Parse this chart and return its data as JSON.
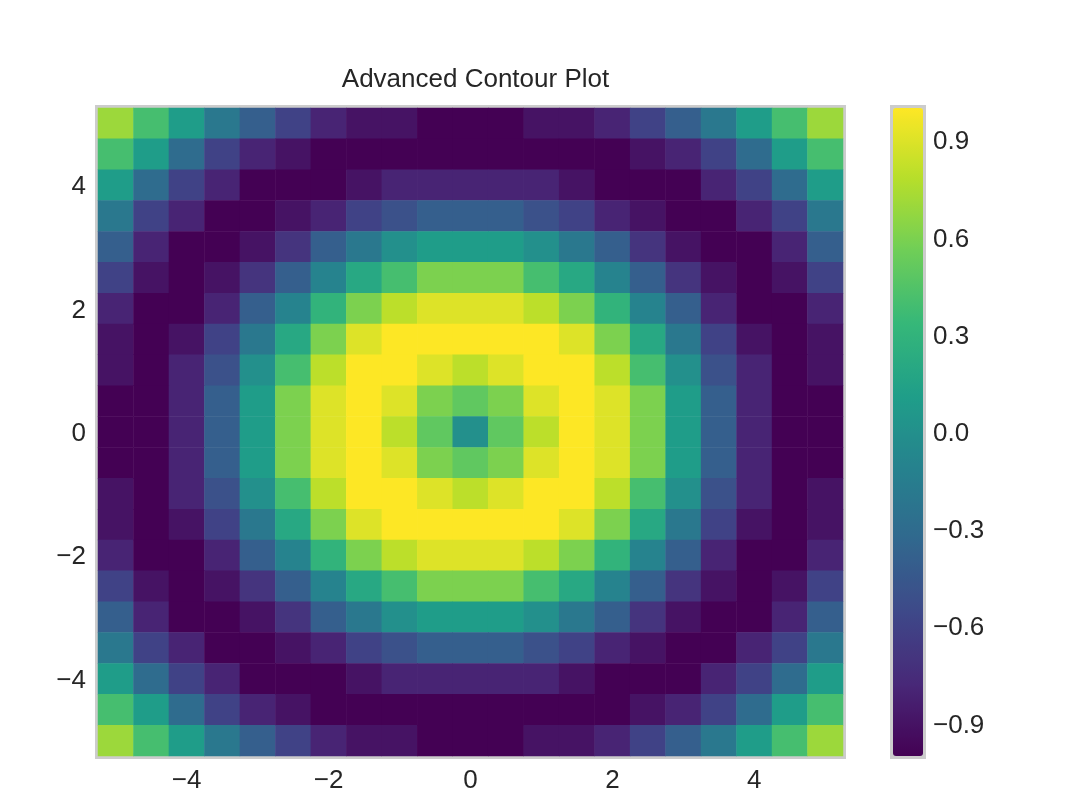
{
  "chart_data": {
    "type": "heatmap",
    "title": "Advanced Contour Plot",
    "categories": [
      null,
      null,
      "−4",
      null,
      null,
      null,
      "−2",
      null,
      null,
      null,
      "0",
      null,
      null,
      null,
      "2",
      null,
      null,
      null,
      "4",
      null,
      null
    ],
    "y_categories": [
      null,
      null,
      "4",
      null,
      null,
      null,
      "2",
      null,
      null,
      null,
      "0",
      null,
      null,
      null,
      "−2",
      null,
      null,
      null,
      "−4",
      null,
      null
    ],
    "cells": [
      [
        0.7,
        0.4,
        0.1,
        -0.2,
        -0.4,
        -0.6,
        -0.8,
        -0.9,
        -0.9,
        -1,
        -1,
        -1,
        -0.9,
        -0.9,
        -0.8,
        -0.6,
        -0.4,
        -0.2,
        0.1,
        0.4,
        0.7
      ],
      [
        0.4,
        0.1,
        -0.3,
        -0.6,
        -0.8,
        -0.9,
        -1,
        -1,
        -1,
        -1,
        -1,
        -1,
        -1,
        -1,
        -1,
        -0.9,
        -0.8,
        -0.6,
        -0.3,
        0.1,
        0.4
      ],
      [
        0.1,
        -0.3,
        -0.6,
        -0.8,
        -1,
        -1,
        -1,
        -0.9,
        -0.8,
        -0.8,
        -0.8,
        -0.8,
        -0.8,
        -0.9,
        -1,
        -1,
        -1,
        -0.8,
        -0.6,
        -0.3,
        0.1
      ],
      [
        -0.2,
        -0.6,
        -0.8,
        -1,
        -1,
        -0.9,
        -0.8,
        -0.6,
        -0.5,
        -0.4,
        -0.4,
        -0.4,
        -0.5,
        -0.6,
        -0.8,
        -0.9,
        -1,
        -1,
        -0.8,
        -0.6,
        -0.2
      ],
      [
        -0.4,
        -0.8,
        -1,
        -1,
        -0.9,
        -0.7,
        -0.4,
        -0.2,
        0,
        0.1,
        0.1,
        0.1,
        0,
        -0.2,
        -0.4,
        -0.7,
        -0.9,
        -1,
        -1,
        -0.8,
        -0.4
      ],
      [
        -0.6,
        -0.9,
        -1,
        -0.9,
        -0.7,
        -0.4,
        -0.1,
        0.2,
        0.4,
        0.6,
        0.6,
        0.6,
        0.4,
        0.2,
        -0.1,
        -0.4,
        -0.7,
        -0.9,
        -1,
        -0.9,
        -0.6
      ],
      [
        -0.8,
        -1,
        -1,
        -0.8,
        -0.4,
        -0.1,
        0.3,
        0.6,
        0.8,
        0.9,
        0.9,
        0.9,
        0.8,
        0.6,
        0.3,
        -0.1,
        -0.4,
        -0.8,
        -1,
        -1,
        -0.8
      ],
      [
        -0.9,
        -1,
        -0.9,
        -0.6,
        -0.2,
        0.2,
        0.6,
        0.9,
        1,
        1,
        1,
        1,
        1,
        0.9,
        0.6,
        0.2,
        -0.2,
        -0.6,
        -0.9,
        -1,
        -0.9
      ],
      [
        -0.9,
        -1,
        -0.8,
        -0.5,
        0,
        0.4,
        0.8,
        1,
        1,
        0.9,
        0.8,
        0.9,
        1,
        1,
        0.8,
        0.4,
        0,
        -0.5,
        -0.8,
        -1,
        -0.9
      ],
      [
        -1,
        -1,
        -0.8,
        -0.4,
        0.1,
        0.6,
        0.9,
        1,
        0.9,
        0.6,
        0.5,
        0.6,
        0.9,
        1,
        0.9,
        0.6,
        0.1,
        -0.4,
        -0.8,
        -1,
        -1
      ],
      [
        -1,
        -1,
        -0.8,
        -0.4,
        0.1,
        0.6,
        0.9,
        1,
        0.8,
        0.5,
        0,
        0.5,
        0.8,
        1,
        0.9,
        0.6,
        0.1,
        -0.4,
        -0.8,
        -1,
        -1
      ],
      [
        -1,
        -1,
        -0.8,
        -0.4,
        0.1,
        0.6,
        0.9,
        1,
        0.9,
        0.6,
        0.5,
        0.6,
        0.9,
        1,
        0.9,
        0.6,
        0.1,
        -0.4,
        -0.8,
        -1,
        -1
      ],
      [
        -0.9,
        -1,
        -0.8,
        -0.5,
        0,
        0.4,
        0.8,
        1,
        1,
        0.9,
        0.8,
        0.9,
        1,
        1,
        0.8,
        0.4,
        0,
        -0.5,
        -0.8,
        -1,
        -0.9
      ],
      [
        -0.9,
        -1,
        -0.9,
        -0.6,
        -0.2,
        0.2,
        0.6,
        0.9,
        1,
        1,
        1,
        1,
        1,
        0.9,
        0.6,
        0.2,
        -0.2,
        -0.6,
        -0.9,
        -1,
        -0.9
      ],
      [
        -0.8,
        -1,
        -1,
        -0.8,
        -0.4,
        -0.1,
        0.3,
        0.6,
        0.8,
        0.9,
        0.9,
        0.9,
        0.8,
        0.6,
        0.3,
        -0.1,
        -0.4,
        -0.8,
        -1,
        -1,
        -0.8
      ],
      [
        -0.6,
        -0.9,
        -1,
        -0.9,
        -0.7,
        -0.4,
        -0.1,
        0.2,
        0.4,
        0.6,
        0.6,
        0.6,
        0.4,
        0.2,
        -0.1,
        -0.4,
        -0.7,
        -0.9,
        -1,
        -0.9,
        -0.6
      ],
      [
        -0.4,
        -0.8,
        -1,
        -1,
        -0.9,
        -0.7,
        -0.4,
        -0.2,
        0,
        0.1,
        0.1,
        0.1,
        0,
        -0.2,
        -0.4,
        -0.7,
        -0.9,
        -1,
        -1,
        -0.8,
        -0.4
      ],
      [
        -0.2,
        -0.6,
        -0.8,
        -1,
        -1,
        -0.9,
        -0.8,
        -0.6,
        -0.5,
        -0.4,
        -0.4,
        -0.4,
        -0.5,
        -0.6,
        -0.8,
        -0.9,
        -1,
        -1,
        -0.8,
        -0.6,
        -0.2
      ],
      [
        0.1,
        -0.3,
        -0.6,
        -0.8,
        -1,
        -1,
        -1,
        -0.9,
        -0.8,
        -0.8,
        -0.8,
        -0.8,
        -0.8,
        -0.9,
        -1,
        -1,
        -1,
        -0.8,
        -0.6,
        -0.3,
        0.1
      ],
      [
        0.4,
        0.1,
        -0.3,
        -0.6,
        -0.8,
        -0.9,
        -1,
        -1,
        -1,
        -1,
        -1,
        -1,
        -1,
        -1,
        -1,
        -0.9,
        -0.8,
        -0.6,
        -0.3,
        0.1,
        0.4
      ],
      [
        0.7,
        0.4,
        0.1,
        -0.2,
        -0.4,
        -0.6,
        -0.8,
        -0.9,
        -0.9,
        -1,
        -1,
        -1,
        -0.9,
        -0.9,
        -0.8,
        -0.6,
        -0.4,
        -0.2,
        0.1,
        0.4,
        0.7
      ]
    ],
    "clim": [
      -1,
      1
    ],
    "cticks": [
      -0.9,
      -0.6,
      -0.3,
      {
        "value": 0,
        "label": "0.0"
      },
      0.3,
      0.6,
      0.9
    ]
  }
}
